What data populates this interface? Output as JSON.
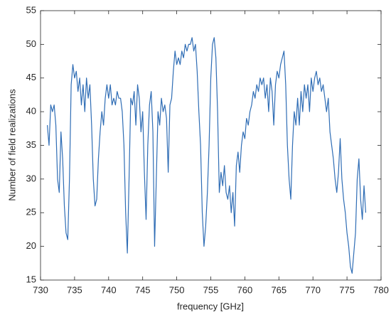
{
  "chart_data": {
    "type": "line",
    "x_label": "frequency [GHz]",
    "y_label": "Number of field realizations",
    "xlim": [
      730,
      780
    ],
    "xticks": [
      730,
      735,
      740,
      745,
      750,
      755,
      760,
      765,
      770,
      775,
      780
    ],
    "ylim": [
      15,
      55
    ],
    "yticks": [
      15,
      20,
      25,
      30,
      35,
      40,
      45,
      50,
      55
    ],
    "grid": false,
    "series": [
      {
        "color": "#2f6db5",
        "x": [
          731,
          731.25,
          731.5,
          731.75,
          732,
          732.25,
          732.5,
          732.75,
          733,
          733.25,
          733.5,
          733.75,
          734,
          734.25,
          734.5,
          734.75,
          735,
          735.25,
          735.5,
          735.75,
          736,
          736.25,
          736.5,
          736.75,
          737,
          737.25,
          737.5,
          737.75,
          738,
          738.25,
          738.5,
          738.75,
          739,
          739.25,
          739.5,
          739.75,
          740,
          740.25,
          740.5,
          740.75,
          741,
          741.25,
          741.5,
          741.75,
          742,
          742.25,
          742.5,
          742.75,
          743,
          743.25,
          743.5,
          743.75,
          744,
          744.25,
          744.5,
          744.75,
          745,
          745.25,
          745.5,
          745.75,
          746,
          746.25,
          746.5,
          746.75,
          747,
          747.25,
          747.5,
          747.75,
          748,
          748.25,
          748.5,
          748.75,
          749,
          749.25,
          749.5,
          749.75,
          750,
          750.25,
          750.5,
          750.75,
          751,
          751.25,
          751.5,
          751.75,
          752,
          752.25,
          752.5,
          752.75,
          753,
          753.25,
          753.5,
          753.75,
          754,
          754.25,
          754.5,
          754.75,
          755,
          755.25,
          755.5,
          755.75,
          756,
          756.25,
          756.5,
          756.75,
          757,
          757.25,
          757.5,
          757.75,
          758,
          758.25,
          758.5,
          758.75,
          759,
          759.25,
          759.5,
          759.75,
          760,
          760.25,
          760.5,
          760.75,
          761,
          761.25,
          761.5,
          761.75,
          762,
          762.25,
          762.5,
          762.75,
          763,
          763.25,
          763.5,
          763.75,
          764,
          764.25,
          764.5,
          764.75,
          765,
          765.25,
          765.5,
          765.75,
          766,
          766.25,
          766.5,
          766.75,
          767,
          767.25,
          767.5,
          767.75,
          768,
          768.25,
          768.5,
          768.75,
          769,
          769.25,
          769.5,
          769.75,
          770,
          770.25,
          770.5,
          770.75,
          771,
          771.25,
          771.5,
          771.75,
          772,
          772.25,
          772.5,
          772.75,
          773,
          773.25,
          773.5,
          773.75,
          774,
          774.25,
          774.5,
          774.75,
          775,
          775.25,
          775.5,
          775.75,
          776,
          776.25,
          776.5,
          776.75,
          777,
          777.25,
          777.5,
          777.75
        ],
        "values": [
          38,
          35,
          41,
          40,
          41,
          38,
          30,
          28,
          37,
          33,
          26,
          22,
          21,
          30,
          44,
          47,
          45,
          46,
          43,
          45,
          41,
          44,
          40,
          45,
          42,
          44,
          38,
          30,
          26,
          27,
          33,
          37,
          40,
          38,
          42,
          44,
          42,
          44,
          41,
          42,
          41,
          43,
          42,
          42,
          40,
          35,
          25,
          19,
          30,
          42,
          41,
          43,
          38,
          44,
          42,
          37,
          40,
          31,
          24,
          35,
          41,
          43,
          37,
          20,
          30,
          40,
          38,
          42,
          40,
          41,
          39,
          31,
          41,
          42,
          46,
          49,
          47,
          48,
          47,
          49,
          48,
          50,
          49,
          50,
          50,
          51,
          49,
          50,
          46,
          40,
          35,
          25,
          20,
          23,
          28,
          35,
          45,
          50,
          51,
          48,
          40,
          28,
          31,
          29,
          32,
          28,
          27,
          29,
          25,
          28,
          23,
          32,
          34,
          31,
          35,
          37,
          36,
          39,
          38,
          40,
          41,
          43,
          42,
          44,
          43,
          45,
          44,
          45,
          42,
          44,
          40,
          45,
          43,
          38,
          44,
          46,
          45,
          47,
          48,
          49,
          44,
          35,
          30,
          27,
          35,
          40,
          38,
          42,
          38,
          43,
          40,
          44,
          42,
          44,
          40,
          45,
          43,
          45,
          46,
          44,
          45,
          43,
          44,
          42,
          40,
          42,
          37,
          35,
          33,
          30,
          28,
          31,
          36,
          30,
          27,
          25,
          22,
          20,
          17,
          16,
          19,
          22,
          30,
          33,
          27,
          24,
          29,
          25
        ]
      }
    ]
  }
}
